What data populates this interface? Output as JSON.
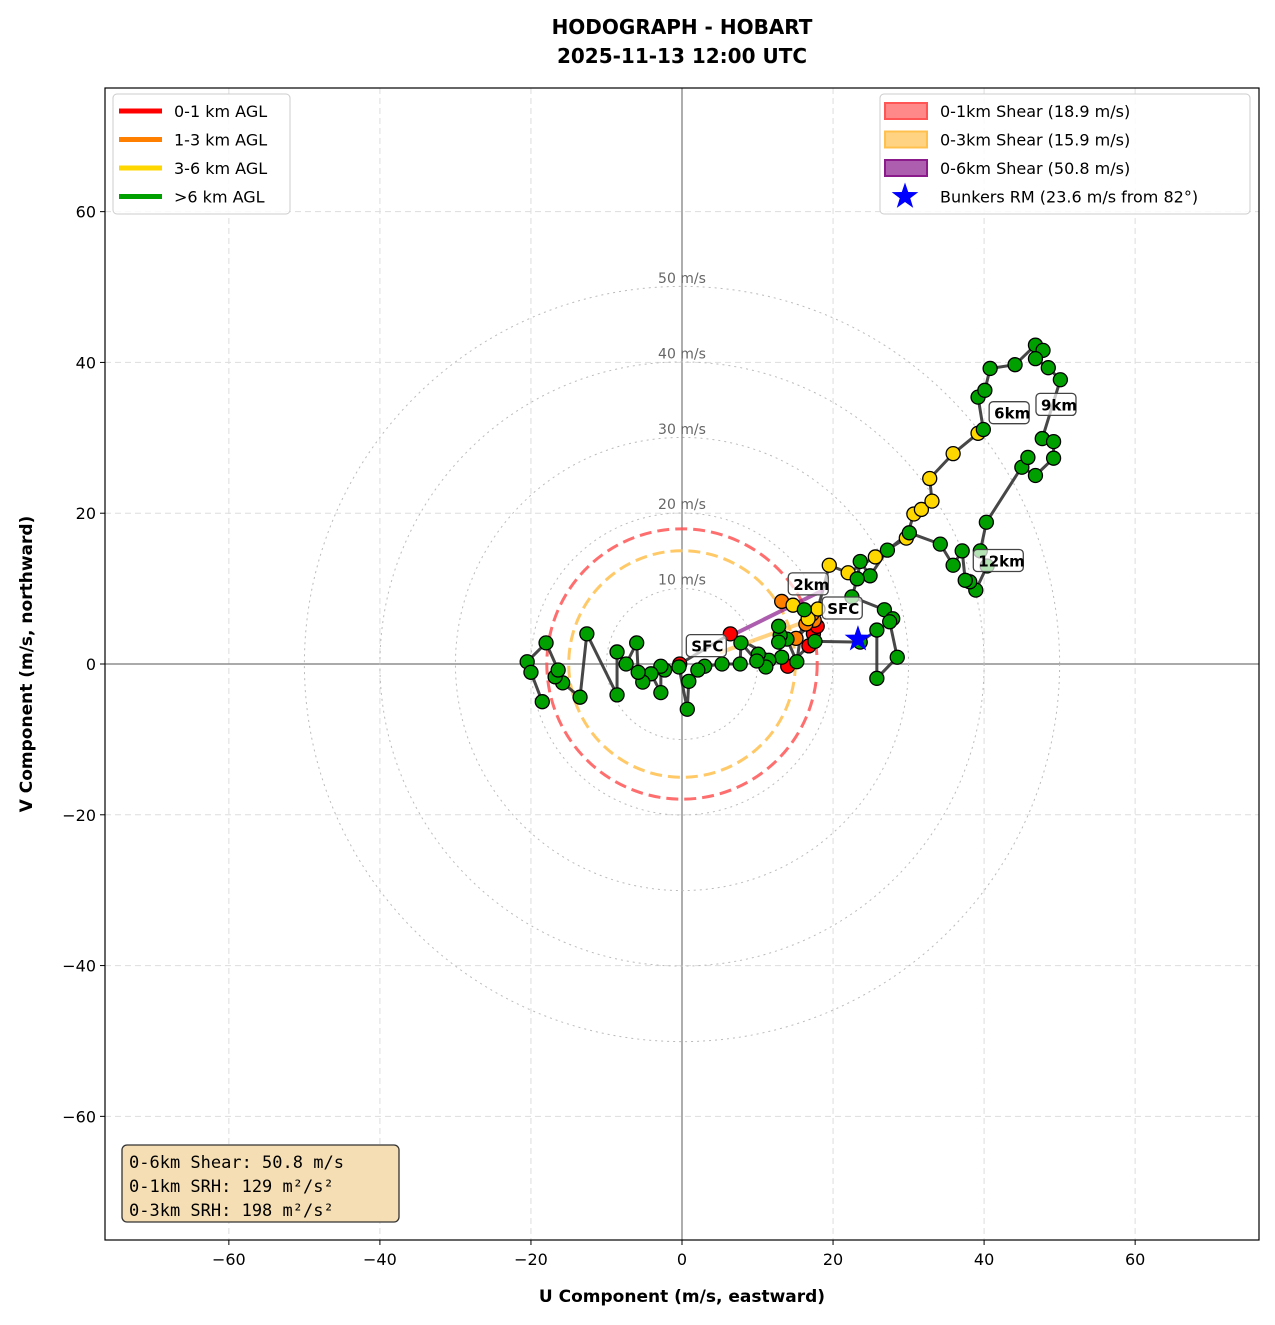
{
  "chart_data": {
    "type": "line",
    "title": "HODOGRAPH - HOBART",
    "subtitle": "2025-11-13 12:00 UTC",
    "xlabel": "U Component (m/s, eastward)",
    "ylabel": "V Component (m/s, northward)",
    "xlim": [
      -76.4,
      76.4
    ],
    "ylim": [
      -76.4,
      76.4
    ],
    "xticks": [
      -60,
      -40,
      -20,
      0,
      20,
      40,
      60
    ],
    "yticks": [
      -60,
      -40,
      -20,
      0,
      20,
      40,
      60
    ],
    "grid": true,
    "speed_rings": [
      10,
      20,
      30,
      40,
      50
    ],
    "ring_label_suffix": " m/s",
    "legend_left": [
      {
        "label": "0-1 km AGL",
        "color": "#ff0000"
      },
      {
        "label": "1-3 km AGL",
        "color": "#ff8000"
      },
      {
        "label": "3-6 km AGL",
        "color": "#ffd700"
      },
      {
        "label": ">6 km AGL",
        "color": "#00a000"
      }
    ],
    "legend_right": [
      {
        "label": "0-1km Shear (18.9 m/s)",
        "color": "#ff5555"
      },
      {
        "label": "0-3km Shear (15.9 m/s)",
        "color": "#ffc04d"
      },
      {
        "label": "0-6km Shear (50.8 m/s)",
        "color": "#8b1a8b"
      },
      {
        "label": "Bunkers RM (23.6 m/s from 82°)",
        "color": "#0000ff"
      }
    ],
    "shear_rings": [
      {
        "radius": 17.9,
        "color": "#ff5555"
      },
      {
        "radius": 15.0,
        "color": "#ffc04d"
      }
    ],
    "series": [
      {
        "layer": "0-1 km",
        "color": "#ff0000",
        "points": [
          [
            -0.3,
            0
          ],
          [
            6.4,
            4.0
          ],
          [
            14.0,
            -0.3
          ],
          [
            16.8,
            2.4
          ],
          [
            17.4,
            4.0
          ],
          [
            17.9,
            5.0
          ]
        ]
      },
      {
        "layer": "1-3 km",
        "color": "#ff8000",
        "points": [
          [
            17.5,
            5.8
          ],
          [
            15.1,
            3.4
          ],
          [
            16.4,
            5.3
          ],
          [
            17.2,
            6.6
          ],
          [
            13.2,
            8.3
          ]
        ]
      },
      {
        "layer": "3-6 km",
        "color": "#ffd700",
        "points": [
          [
            14.7,
            7.8
          ],
          [
            16.7,
            6.0
          ],
          [
            18.0,
            7.3
          ],
          [
            19.5,
            13.1
          ],
          [
            22.0,
            12.1
          ],
          [
            25.6,
            14.2
          ],
          [
            29.7,
            16.7
          ],
          [
            30.7,
            19.9
          ],
          [
            31.7,
            20.5
          ],
          [
            33.1,
            21.6
          ],
          [
            32.8,
            24.6
          ],
          [
            35.9,
            27.9
          ],
          [
            39.2,
            30.6
          ]
        ]
      },
      {
        "layer": ">6 km",
        "color": "#00a000",
        "points": [
          [
            39.9,
            31.1
          ],
          [
            39.2,
            35.4
          ],
          [
            40.1,
            36.3
          ],
          [
            40.8,
            39.2
          ],
          [
            44.1,
            39.7
          ],
          [
            46.8,
            42.3
          ],
          [
            47.8,
            41.6
          ],
          [
            46.8,
            40.5
          ],
          [
            48.5,
            39.3
          ],
          [
            50.1,
            37.7
          ],
          [
            47.7,
            29.9
          ],
          [
            49.2,
            29.5
          ],
          [
            49.2,
            27.3
          ],
          [
            46.8,
            25.0
          ],
          [
            45.0,
            26.1
          ],
          [
            45.8,
            27.4
          ],
          [
            40.3,
            18.8
          ],
          [
            39.5,
            15.0
          ],
          [
            40.4,
            13.0
          ],
          [
            38.9,
            9.8
          ],
          [
            38.1,
            10.9
          ],
          [
            37.5,
            11.1
          ],
          [
            37.1,
            15.0
          ],
          [
            35.9,
            13.1
          ],
          [
            34.2,
            15.9
          ],
          [
            30.1,
            17.4
          ],
          [
            27.2,
            15.1
          ],
          [
            24.9,
            11.7
          ],
          [
            23.6,
            13.6
          ],
          [
            23.2,
            11.3
          ],
          [
            22.5,
            8.9
          ],
          [
            26.8,
            7.2
          ],
          [
            27.9,
            6.0
          ],
          [
            27.5,
            5.6
          ],
          [
            28.5,
            0.9
          ],
          [
            25.8,
            -1.9
          ],
          [
            25.8,
            4.5
          ],
          [
            23.6,
            2.9
          ],
          [
            17.6,
            3.0
          ],
          [
            16.2,
            7.2
          ],
          [
            15.2,
            0.3
          ],
          [
            13.9,
            3.3
          ],
          [
            13.0,
            3.8
          ],
          [
            12.8,
            5.0
          ],
          [
            12.8,
            2.9
          ],
          [
            13.2,
            0.9
          ],
          [
            11.5,
            0.5
          ],
          [
            11.1,
            -0.4
          ],
          [
            10.1,
            1.3
          ],
          [
            9.9,
            0.4
          ],
          [
            7.8,
            2.8
          ],
          [
            7.7,
            0
          ],
          [
            5.3,
            0
          ],
          [
            3.0,
            -0.3
          ],
          [
            2.1,
            -0.8
          ],
          [
            0.9,
            -2.3
          ],
          [
            0.7,
            -6.0
          ],
          [
            -0.4,
            -0.4
          ],
          [
            -2.3,
            -0.8
          ],
          [
            -2.8,
            -0.3
          ],
          [
            -2.8,
            -3.8
          ],
          [
            -4.1,
            -1.3
          ],
          [
            -5.2,
            -2.4
          ],
          [
            -5.8,
            -1.1
          ],
          [
            -6.0,
            2.8
          ],
          [
            -7.4,
            0
          ],
          [
            -8.6,
            1.6
          ],
          [
            -8.6,
            -4.1
          ],
          [
            -12.6,
            4.0
          ],
          [
            -13.5,
            -4.4
          ],
          [
            -15.8,
            -2.5
          ],
          [
            -16.8,
            -1.7
          ],
          [
            -16.4,
            -0.8
          ],
          [
            -18.0,
            2.8
          ],
          [
            -20.5,
            0.3
          ],
          [
            -20.0,
            -1.1
          ],
          [
            -18.5,
            -5.0
          ]
        ]
      }
    ],
    "shear_vectors": [
      {
        "name": "0-3km",
        "color": "#ffc04d",
        "from": [
          5,
          1.5
        ],
        "to": [
          16,
          5.5
        ]
      },
      {
        "name": "0-6km",
        "color": "#8b1a8b",
        "from": [
          7,
          4
        ],
        "to": [
          18.7,
          9.8
        ]
      }
    ],
    "height_labels": [
      {
        "text": "SFC",
        "u": 1.1,
        "v": 2.3
      },
      {
        "text": "2km",
        "u": 14.6,
        "v": 10.5
      },
      {
        "text": "SFC",
        "u": 19.1,
        "v": 7.3
      },
      {
        "text": "6km",
        "u": 41.2,
        "v": 33.2
      },
      {
        "text": "9km",
        "u": 47.4,
        "v": 34.3
      },
      {
        "text": "12km",
        "u": 39.1,
        "v": 13.6
      }
    ],
    "bunkers_rm": [
      23.3,
      3.3
    ],
    "stats_box": [
      "0-6km Shear: 50.8 m/s",
      "0-1km SRH: 129 m²/s²",
      "0-3km SRH: 198 m²/s²"
    ]
  }
}
